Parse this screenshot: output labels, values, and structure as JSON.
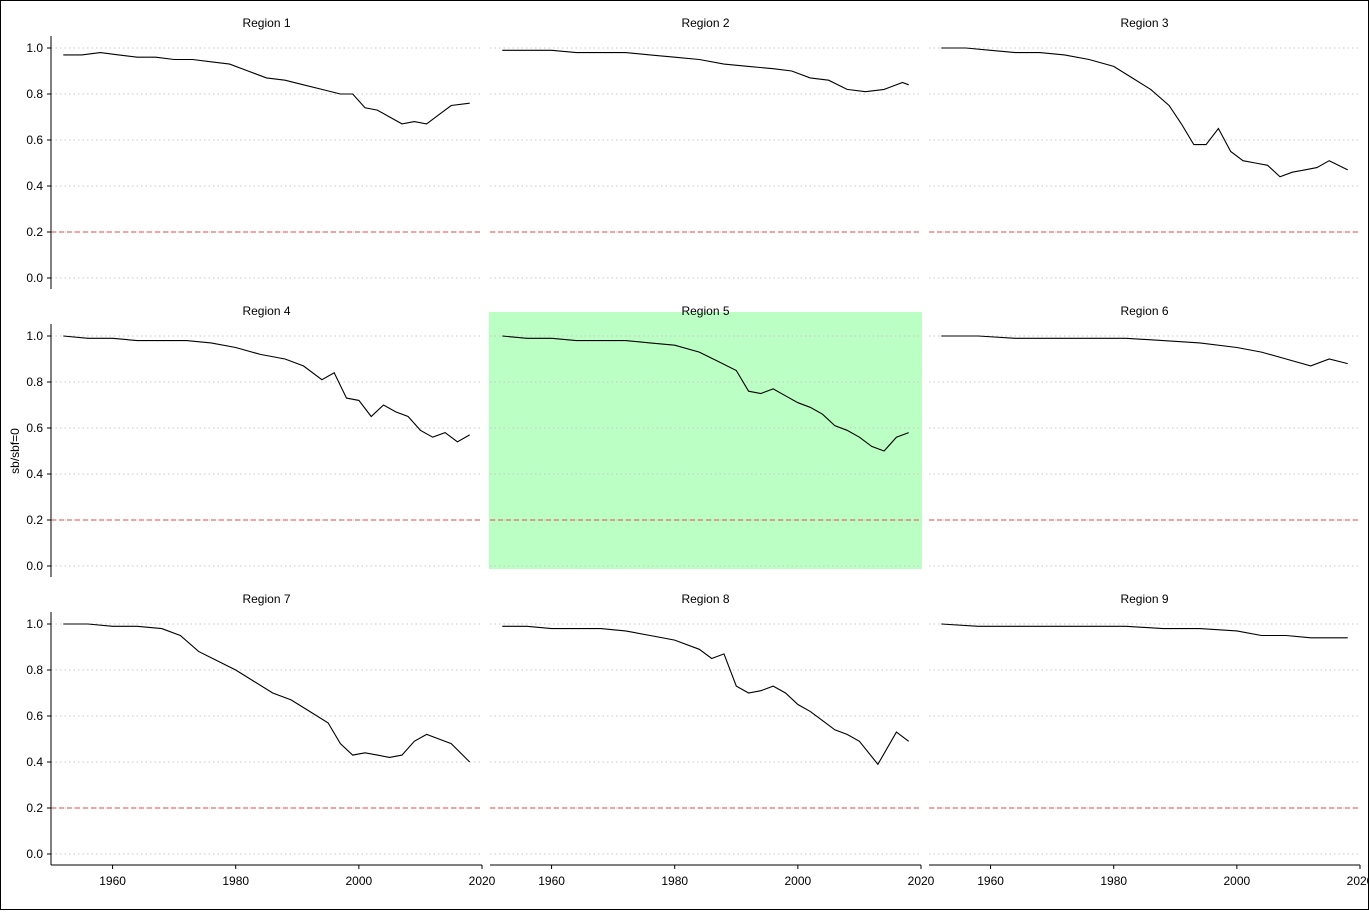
{
  "chart_data": {
    "type": "line",
    "layout": "3x3 facet grid",
    "ylabel": "sb/sbf=0",
    "xlabel": "",
    "xlim": [
      1950,
      2020
    ],
    "ylim": [
      0,
      1.0
    ],
    "x_ticks": [
      1960,
      1980,
      2000,
      2020
    ],
    "y_ticks": [
      0.0,
      0.2,
      0.4,
      0.6,
      0.8,
      1.0
    ],
    "y_tick_labels": [
      "0.0",
      "0.2",
      "0.4",
      "0.6",
      "0.8",
      "1.0"
    ],
    "grid": "horizontal dotted at y ticks",
    "reference_line": {
      "y": 0.2,
      "style": "dashed",
      "color": "#e8474a"
    },
    "line_color": "#000000",
    "highlight_color": "#bbffc4",
    "panels": [
      {
        "title": "Region 1",
        "highlighted": false,
        "x": [
          1952,
          1955,
          1958,
          1961,
          1964,
          1967,
          1970,
          1973,
          1976,
          1979,
          1982,
          1985,
          1988,
          1991,
          1994,
          1997,
          1999,
          2001,
          2003,
          2005,
          2007,
          2009,
          2011,
          2013,
          2015,
          2018
        ],
        "y": [
          0.97,
          0.97,
          0.98,
          0.97,
          0.96,
          0.96,
          0.95,
          0.95,
          0.94,
          0.93,
          0.9,
          0.87,
          0.86,
          0.84,
          0.82,
          0.8,
          0.8,
          0.74,
          0.73,
          0.7,
          0.67,
          0.68,
          0.67,
          0.71,
          0.75,
          0.76
        ]
      },
      {
        "title": "Region 2",
        "highlighted": false,
        "x": [
          1952,
          1956,
          1960,
          1964,
          1968,
          1972,
          1976,
          1980,
          1984,
          1988,
          1992,
          1996,
          1999,
          2002,
          2005,
          2008,
          2011,
          2014,
          2017,
          2018
        ],
        "y": [
          0.99,
          0.99,
          0.99,
          0.98,
          0.98,
          0.98,
          0.97,
          0.96,
          0.95,
          0.93,
          0.92,
          0.91,
          0.9,
          0.87,
          0.86,
          0.82,
          0.81,
          0.82,
          0.85,
          0.84
        ]
      },
      {
        "title": "Region 3",
        "highlighted": false,
        "x": [
          1952,
          1956,
          1960,
          1964,
          1968,
          1972,
          1976,
          1980,
          1983,
          1986,
          1989,
          1991,
          1993,
          1995,
          1997,
          1999,
          2001,
          2003,
          2005,
          2007,
          2009,
          2011,
          2013,
          2015,
          2018
        ],
        "y": [
          1.0,
          1.0,
          0.99,
          0.98,
          0.98,
          0.97,
          0.95,
          0.92,
          0.87,
          0.82,
          0.75,
          0.67,
          0.58,
          0.58,
          0.65,
          0.55,
          0.51,
          0.5,
          0.49,
          0.44,
          0.46,
          0.47,
          0.48,
          0.51,
          0.47
        ]
      },
      {
        "title": "Region 4",
        "highlighted": false,
        "x": [
          1952,
          1956,
          1960,
          1964,
          1968,
          1972,
          1976,
          1980,
          1984,
          1988,
          1991,
          1994,
          1996,
          1998,
          2000,
          2002,
          2004,
          2006,
          2008,
          2010,
          2012,
          2014,
          2016,
          2018
        ],
        "y": [
          1.0,
          0.99,
          0.99,
          0.98,
          0.98,
          0.98,
          0.97,
          0.95,
          0.92,
          0.9,
          0.87,
          0.81,
          0.84,
          0.73,
          0.72,
          0.65,
          0.7,
          0.67,
          0.65,
          0.59,
          0.56,
          0.58,
          0.54,
          0.57
        ]
      },
      {
        "title": "Region 5",
        "highlighted": true,
        "x": [
          1952,
          1956,
          1960,
          1964,
          1968,
          1972,
          1976,
          1980,
          1984,
          1987,
          1990,
          1992,
          1994,
          1996,
          1998,
          2000,
          2002,
          2004,
          2006,
          2008,
          2010,
          2012,
          2014,
          2016,
          2018
        ],
        "y": [
          1.0,
          0.99,
          0.99,
          0.98,
          0.98,
          0.98,
          0.97,
          0.96,
          0.93,
          0.89,
          0.85,
          0.76,
          0.75,
          0.77,
          0.74,
          0.71,
          0.69,
          0.66,
          0.61,
          0.59,
          0.56,
          0.52,
          0.5,
          0.56,
          0.58
        ]
      },
      {
        "title": "Region 6",
        "highlighted": false,
        "x": [
          1952,
          1958,
          1964,
          1970,
          1976,
          1982,
          1988,
          1994,
          2000,
          2004,
          2008,
          2012,
          2015,
          2018
        ],
        "y": [
          1.0,
          1.0,
          0.99,
          0.99,
          0.99,
          0.99,
          0.98,
          0.97,
          0.95,
          0.93,
          0.9,
          0.87,
          0.9,
          0.88
        ]
      },
      {
        "title": "Region 7",
        "highlighted": false,
        "x": [
          1952,
          1956,
          1960,
          1964,
          1968,
          1971,
          1974,
          1977,
          1980,
          1983,
          1986,
          1989,
          1992,
          1995,
          1997,
          1999,
          2001,
          2003,
          2005,
          2007,
          2009,
          2011,
          2013,
          2015,
          2018
        ],
        "y": [
          1.0,
          1.0,
          0.99,
          0.99,
          0.98,
          0.95,
          0.88,
          0.84,
          0.8,
          0.75,
          0.7,
          0.67,
          0.62,
          0.57,
          0.48,
          0.43,
          0.44,
          0.43,
          0.42,
          0.43,
          0.49,
          0.52,
          0.5,
          0.48,
          0.4
        ]
      },
      {
        "title": "Region 8",
        "highlighted": false,
        "x": [
          1952,
          1956,
          1960,
          1964,
          1968,
          1972,
          1976,
          1980,
          1984,
          1986,
          1988,
          1990,
          1992,
          1994,
          1996,
          1998,
          2000,
          2002,
          2004,
          2006,
          2008,
          2010,
          2013,
          2016,
          2018
        ],
        "y": [
          0.99,
          0.99,
          0.98,
          0.98,
          0.98,
          0.97,
          0.95,
          0.93,
          0.89,
          0.85,
          0.87,
          0.73,
          0.7,
          0.71,
          0.73,
          0.7,
          0.65,
          0.62,
          0.58,
          0.54,
          0.52,
          0.49,
          0.39,
          0.53,
          0.49
        ]
      },
      {
        "title": "Region 9",
        "highlighted": false,
        "x": [
          1952,
          1958,
          1964,
          1970,
          1976,
          1982,
          1988,
          1994,
          2000,
          2004,
          2008,
          2012,
          2015,
          2018
        ],
        "y": [
          1.0,
          0.99,
          0.99,
          0.99,
          0.99,
          0.99,
          0.98,
          0.98,
          0.97,
          0.95,
          0.95,
          0.94,
          0.94,
          0.94
        ]
      }
    ]
  }
}
